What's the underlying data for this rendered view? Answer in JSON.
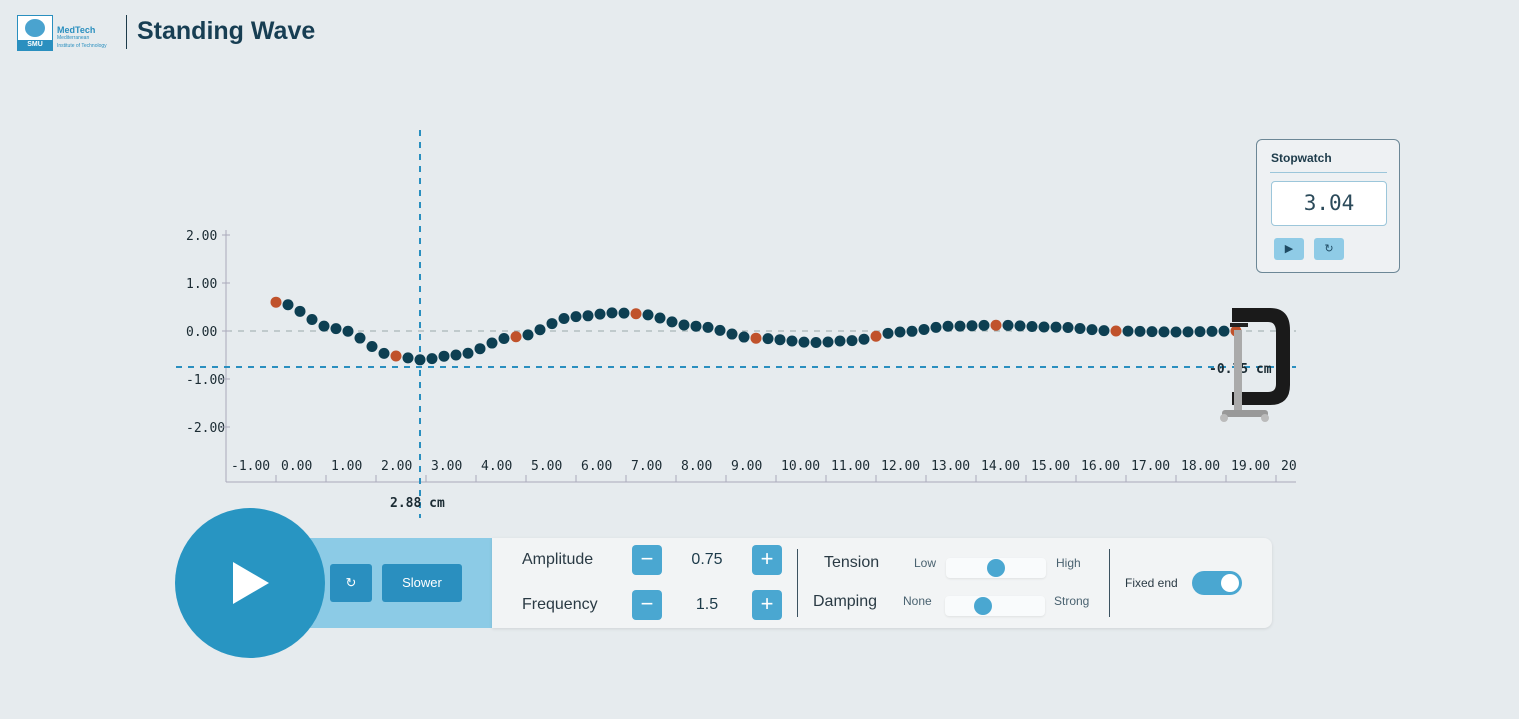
{
  "header": {
    "logo_text": "SMU",
    "brand": "MedTech",
    "brand_sub1": "Mediterranean",
    "brand_sub2": "Institute of Technology",
    "title": "Standing Wave"
  },
  "plot": {
    "x_ticks": [
      "-1.00",
      "0.00",
      "1.00",
      "2.00",
      "3.00",
      "4.00",
      "5.00",
      "6.00",
      "7.00",
      "8.00",
      "9.00",
      "10.00",
      "11.00",
      "12.00",
      "13.00",
      "14.00",
      "15.00",
      "16.00",
      "17.00",
      "18.00",
      "19.00",
      "20"
    ],
    "y_ticks": [
      "2.00",
      "1.00",
      "0.00",
      "-1.00",
      "-2.00"
    ],
    "cursor_x_label": "2.88 cm",
    "cursor_y_label": "-0.75 cm",
    "cursor_x": 2.88,
    "cursor_y": -0.75,
    "string_profile_cm": [
      [
        0,
        0.6
      ],
      [
        1.2,
        0.05
      ],
      [
        2.4,
        -0.52
      ],
      [
        2.88,
        -0.6
      ],
      [
        3.6,
        -0.5
      ],
      [
        4.8,
        -0.12
      ],
      [
        6,
        0.3
      ],
      [
        6.8,
        0.38
      ],
      [
        7.2,
        0.36
      ],
      [
        8.4,
        0.1
      ],
      [
        9.6,
        -0.15
      ],
      [
        10.8,
        -0.24
      ],
      [
        11.5,
        -0.2
      ],
      [
        12.5,
        -0.02
      ],
      [
        13.5,
        0.1
      ],
      [
        14.4,
        0.12
      ],
      [
        15.6,
        0.08
      ],
      [
        16.8,
        0
      ],
      [
        18,
        -0.02
      ],
      [
        19.2,
        0
      ]
    ],
    "bead_color": "#0d3f52",
    "marker_color": "#c0522b"
  },
  "stopwatch": {
    "title": "Stopwatch",
    "time": "3.04",
    "play": "▶",
    "reset": "↻"
  },
  "controls": {
    "reset": "↻",
    "slower": "Slower",
    "amplitude_label": "Amplitude",
    "amplitude": "0.75",
    "frequency_label": "Frequency",
    "frequency": "1.5",
    "minus": "−",
    "plus": "+",
    "tension_label": "Tension",
    "tension_low": "Low",
    "tension_high": "High",
    "tension_level": 0.5,
    "damping_label": "Damping",
    "damping_low": "None",
    "damping_high": "Strong",
    "damping_level": 0.35,
    "fixed_end_label": "Fixed end",
    "fixed_end": true
  }
}
